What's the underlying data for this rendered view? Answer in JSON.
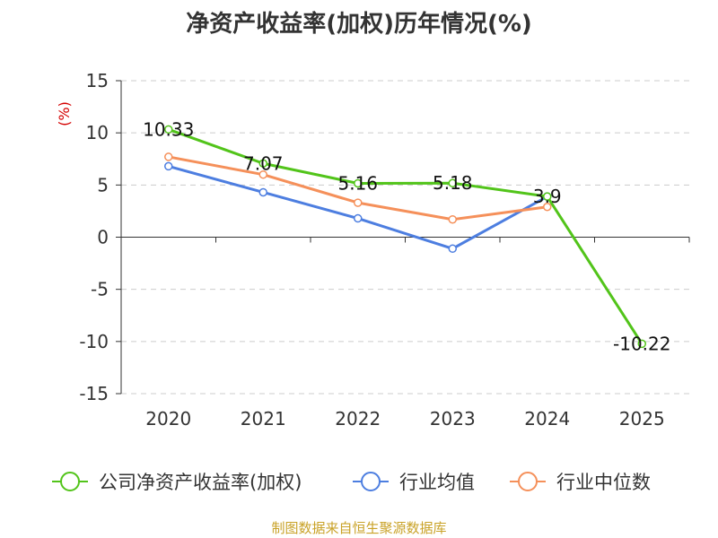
{
  "colors": {
    "company": "#52c41a",
    "avg": "#4d7ee0",
    "median": "#f5905a",
    "axis": "#333333",
    "grid": "#cccccc",
    "ylabel": "#d40000",
    "source": "#c9a227"
  },
  "chart_data": {
    "type": "line",
    "title": "净资产收益率(加权)历年情况(%)",
    "ylabel": "(%)",
    "xlabel": "",
    "categories": [
      "2020",
      "2021",
      "2022",
      "2023",
      "2024",
      "2025"
    ],
    "ylim": [
      -15,
      15
    ],
    "yticks": [
      15,
      10,
      5,
      0,
      -5,
      -10,
      -15
    ],
    "grid": true,
    "legend_position": "bottom",
    "series": [
      {
        "name": "公司净资产收益率(加权)",
        "color_key": "company",
        "values": [
          10.33,
          7.07,
          5.16,
          5.18,
          3.9,
          -10.22
        ],
        "labels": [
          "10.33",
          "7.07",
          "5.16",
          "5.18",
          "3.9",
          "-10.22"
        ]
      },
      {
        "name": "行业均值",
        "color_key": "avg",
        "values": [
          6.8,
          4.3,
          1.8,
          -1.1,
          3.9,
          null
        ]
      },
      {
        "name": "行业中位数",
        "color_key": "median",
        "values": [
          7.7,
          6.0,
          3.3,
          1.7,
          2.9,
          null
        ]
      }
    ]
  },
  "source_text": "制图数据来自恒生聚源数据库"
}
